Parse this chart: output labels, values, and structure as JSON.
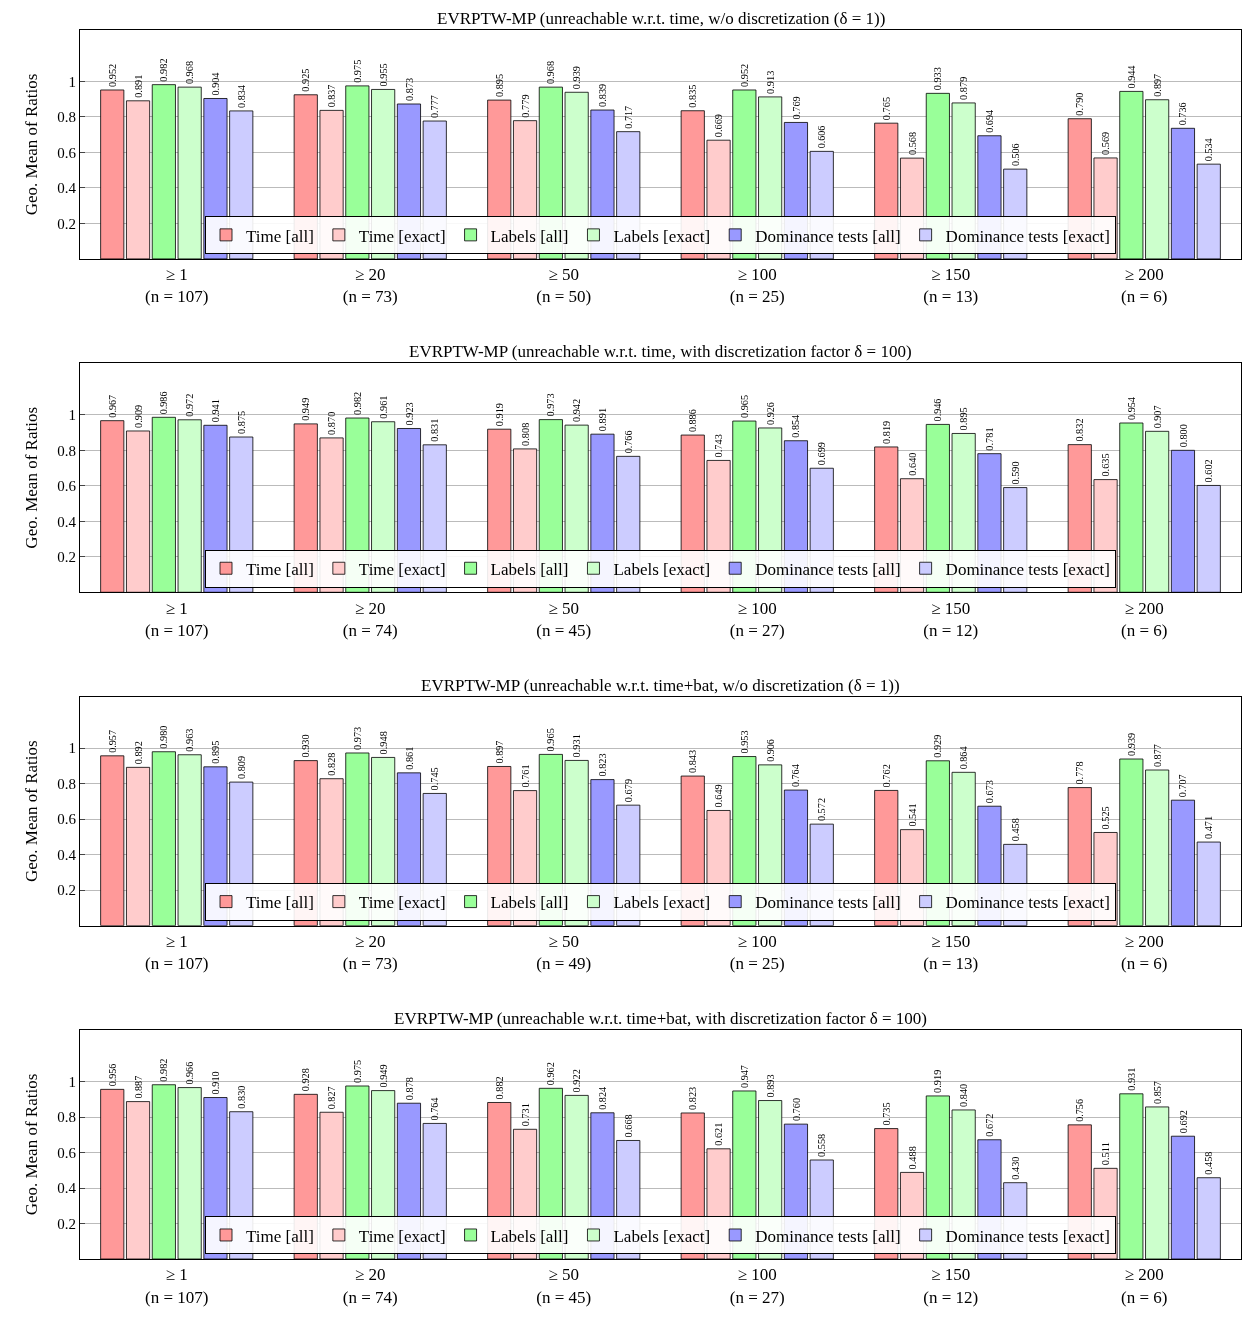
{
  "chart_data": [
    {
      "type": "bar",
      "title": "EVRPTW-MP (unreachable w.r.t. time, w/o discretization (δ = 1))",
      "ylabel": "Geo. Mean of Ratios",
      "categories": [
        "≥ 1\n(n = 107)",
        "≥ 20\n(n = 73)",
        "≥ 50\n(n = 50)",
        "≥ 100\n(n = 25)",
        "≥ 150\n(n = 13)",
        "≥ 200\n(n = 6)"
      ],
      "ylim": [
        0,
        1.29
      ],
      "yticks": [
        0.2,
        0.4,
        0.6,
        0.8,
        1
      ],
      "grid": "y",
      "legend": "bottom",
      "series": [
        {
          "name": "Time [all]",
          "color": "#ff9999",
          "values": [
            0.952,
            0.925,
            0.895,
            0.835,
            0.765,
            0.79
          ],
          "value_labels": [
            "0.952",
            "0.925",
            "0.895",
            "0.835",
            "0.765",
            "0.790"
          ]
        },
        {
          "name": "Time [exact]",
          "color": "#ffcccc",
          "values": [
            0.891,
            0.837,
            0.779,
            0.669,
            0.568,
            0.569
          ],
          "value_labels": [
            "0.891",
            "0.837",
            "0.779",
            "0.669",
            "0.568",
            "0.569"
          ]
        },
        {
          "name": "Labels [all]",
          "color": "#99ff99",
          "values": [
            0.982,
            0.975,
            0.968,
            0.952,
            0.933,
            0.944
          ],
          "value_labels": [
            "0.982",
            "0.975",
            "0.968",
            "0.952",
            "0.933",
            "0.944"
          ]
        },
        {
          "name": "Labels [exact]",
          "color": "#ccffcc",
          "values": [
            0.968,
            0.955,
            0.939,
            0.913,
            0.879,
            0.897
          ],
          "value_labels": [
            "0.968",
            "0.955",
            "0.939",
            "0.913",
            "0.879",
            "0.897"
          ]
        },
        {
          "name": "Dominance tests [all]",
          "color": "#9999ff",
          "values": [
            0.904,
            0.873,
            0.839,
            0.769,
            0.694,
            0.736
          ],
          "value_labels": [
            "0.904",
            "0.873",
            "0.839",
            "0.769",
            "0.694",
            "0.736"
          ]
        },
        {
          "name": "Dominance tests [exact]",
          "color": "#ccccff",
          "values": [
            0.834,
            0.777,
            0.717,
            0.606,
            0.506,
            0.534
          ],
          "value_labels": [
            "0.834",
            "0.777",
            "0.717",
            "0.606",
            "0.506",
            "0.534"
          ]
        }
      ]
    },
    {
      "type": "bar",
      "title": "EVRPTW-MP (unreachable w.r.t. time, with discretization factor δ = 100)",
      "ylabel": "Geo. Mean of Ratios",
      "categories": [
        "≥ 1\n(n = 107)",
        "≥ 20\n(n = 74)",
        "≥ 50\n(n = 45)",
        "≥ 100\n(n = 27)",
        "≥ 150\n(n = 12)",
        "≥ 200\n(n = 6)"
      ],
      "ylim": [
        0,
        1.29
      ],
      "yticks": [
        0.2,
        0.4,
        0.6,
        0.8,
        1
      ],
      "grid": "y",
      "legend": "bottom",
      "series": [
        {
          "name": "Time [all]",
          "color": "#ff9999",
          "values": [
            0.967,
            0.949,
            0.919,
            0.886,
            0.819,
            0.832
          ],
          "value_labels": [
            "0.967",
            "0.949",
            "0.919",
            "0.886",
            "0.819",
            "0.832"
          ]
        },
        {
          "name": "Time [exact]",
          "color": "#ffcccc",
          "values": [
            0.909,
            0.87,
            0.808,
            0.743,
            0.64,
            0.635
          ],
          "value_labels": [
            "0.909",
            "0.870",
            "0.808",
            "0.743",
            "0.640",
            "0.635"
          ]
        },
        {
          "name": "Labels [all]",
          "color": "#99ff99",
          "values": [
            0.986,
            0.982,
            0.973,
            0.965,
            0.946,
            0.954
          ],
          "value_labels": [
            "0.986",
            "0.982",
            "0.973",
            "0.965",
            "0.946",
            "0.954"
          ]
        },
        {
          "name": "Labels [exact]",
          "color": "#ccffcc",
          "values": [
            0.972,
            0.961,
            0.942,
            0.926,
            0.895,
            0.907
          ],
          "value_labels": [
            "0.972",
            "0.961",
            "0.942",
            "0.926",
            "0.895",
            "0.907"
          ]
        },
        {
          "name": "Dominance tests [all]",
          "color": "#9999ff",
          "values": [
            0.941,
            0.923,
            0.891,
            0.854,
            0.781,
            0.8
          ],
          "value_labels": [
            "0.941",
            "0.923",
            "0.891",
            "0.854",
            "0.781",
            "0.800"
          ]
        },
        {
          "name": "Dominance tests [exact]",
          "color": "#ccccff",
          "values": [
            0.875,
            0.831,
            0.766,
            0.699,
            0.59,
            0.602
          ],
          "value_labels": [
            "0.875",
            "0.831",
            "0.766",
            "0.699",
            "0.590",
            "0.602"
          ]
        }
      ]
    },
    {
      "type": "bar",
      "title": "EVRPTW-MP (unreachable w.r.t. time+bat, w/o discretization (δ = 1))",
      "ylabel": "Geo. Mean of Ratios",
      "categories": [
        "≥ 1\n(n = 107)",
        "≥ 20\n(n = 73)",
        "≥ 50\n(n = 49)",
        "≥ 100\n(n = 25)",
        "≥ 150\n(n = 13)",
        "≥ 200\n(n = 6)"
      ],
      "ylim": [
        0,
        1.29
      ],
      "yticks": [
        0.2,
        0.4,
        0.6,
        0.8,
        1
      ],
      "grid": "y",
      "legend": "bottom",
      "series": [
        {
          "name": "Time [all]",
          "color": "#ff9999",
          "values": [
            0.957,
            0.93,
            0.897,
            0.843,
            0.762,
            0.778
          ],
          "value_labels": [
            "0.957",
            "0.930",
            "0.897",
            "0.843",
            "0.762",
            "0.778"
          ]
        },
        {
          "name": "Time [exact]",
          "color": "#ffcccc",
          "values": [
            0.892,
            0.828,
            0.761,
            0.649,
            0.541,
            0.525
          ],
          "value_labels": [
            "0.892",
            "0.828",
            "0.761",
            "0.649",
            "0.541",
            "0.525"
          ]
        },
        {
          "name": "Labels [all]",
          "color": "#99ff99",
          "values": [
            0.98,
            0.973,
            0.965,
            0.953,
            0.929,
            0.939
          ],
          "value_labels": [
            "0.980",
            "0.973",
            "0.965",
            "0.953",
            "0.929",
            "0.939"
          ]
        },
        {
          "name": "Labels [exact]",
          "color": "#ccffcc",
          "values": [
            0.963,
            0.948,
            0.931,
            0.906,
            0.864,
            0.877
          ],
          "value_labels": [
            "0.963",
            "0.948",
            "0.931",
            "0.906",
            "0.864",
            "0.877"
          ]
        },
        {
          "name": "Dominance tests [all]",
          "color": "#9999ff",
          "values": [
            0.895,
            0.861,
            0.823,
            0.764,
            0.673,
            0.707
          ],
          "value_labels": [
            "0.895",
            "0.861",
            "0.823",
            "0.764",
            "0.673",
            "0.707"
          ]
        },
        {
          "name": "Dominance tests [exact]",
          "color": "#ccccff",
          "values": [
            0.809,
            0.745,
            0.679,
            0.572,
            0.458,
            0.471
          ],
          "value_labels": [
            "0.809",
            "0.745",
            "0.679",
            "0.572",
            "0.458",
            "0.471"
          ]
        }
      ]
    },
    {
      "type": "bar",
      "title": "EVRPTW-MP (unreachable w.r.t. time+bat, with discretization factor δ = 100)",
      "ylabel": "Geo. Mean of Ratios",
      "categories": [
        "≥ 1\n(n = 107)",
        "≥ 20\n(n = 74)",
        "≥ 50\n(n = 45)",
        "≥ 100\n(n = 27)",
        "≥ 150\n(n = 12)",
        "≥ 200\n(n = 6)"
      ],
      "ylim": [
        0,
        1.29
      ],
      "yticks": [
        0.2,
        0.4,
        0.6,
        0.8,
        1
      ],
      "grid": "y",
      "legend": "bottom",
      "series": [
        {
          "name": "Time [all]",
          "color": "#ff9999",
          "values": [
            0.956,
            0.928,
            0.882,
            0.823,
            0.735,
            0.756
          ],
          "value_labels": [
            "0.956",
            "0.928",
            "0.882",
            "0.823",
            "0.735",
            "0.756"
          ]
        },
        {
          "name": "Time [exact]",
          "color": "#ffcccc",
          "values": [
            0.887,
            0.827,
            0.731,
            0.621,
            0.488,
            0.511
          ],
          "value_labels": [
            "0.887",
            "0.827",
            "0.731",
            "0.621",
            "0.488",
            "0.511"
          ]
        },
        {
          "name": "Labels [all]",
          "color": "#99ff99",
          "values": [
            0.982,
            0.975,
            0.962,
            0.947,
            0.919,
            0.931
          ],
          "value_labels": [
            "0.982",
            "0.975",
            "0.962",
            "0.947",
            "0.919",
            "0.931"
          ]
        },
        {
          "name": "Labels [exact]",
          "color": "#ccffcc",
          "values": [
            0.966,
            0.949,
            0.922,
            0.893,
            0.84,
            0.857
          ],
          "value_labels": [
            "0.966",
            "0.949",
            "0.922",
            "0.893",
            "0.840",
            "0.857"
          ]
        },
        {
          "name": "Dominance tests [all]",
          "color": "#9999ff",
          "values": [
            0.91,
            0.878,
            0.824,
            0.76,
            0.672,
            0.692
          ],
          "value_labels": [
            "0.910",
            "0.878",
            "0.824",
            "0.760",
            "0.672",
            "0.692"
          ]
        },
        {
          "name": "Dominance tests [exact]",
          "color": "#ccccff",
          "values": [
            0.83,
            0.764,
            0.668,
            0.558,
            0.43,
            0.458
          ],
          "value_labels": [
            "0.830",
            "0.764",
            "0.668",
            "0.558",
            "0.430",
            "0.458"
          ]
        }
      ]
    }
  ]
}
